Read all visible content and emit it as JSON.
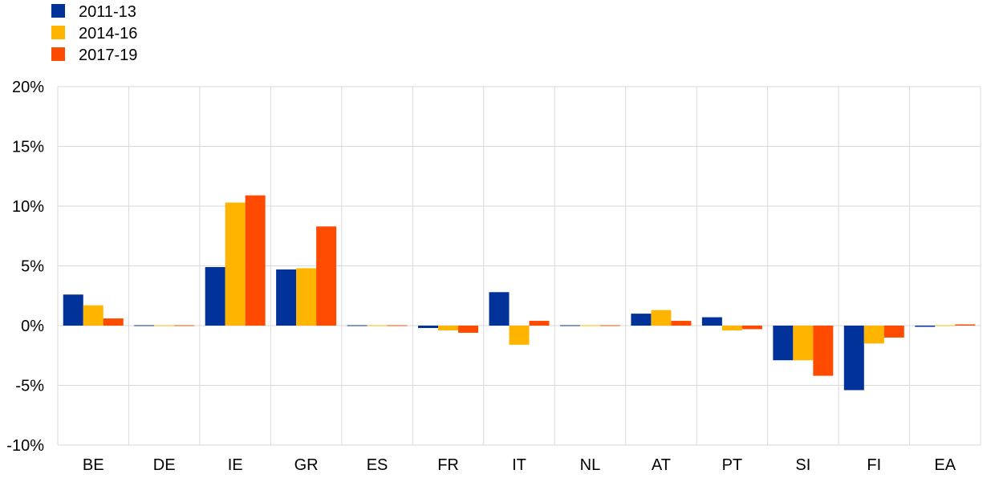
{
  "chart_data": {
    "type": "bar",
    "categories": [
      "BE",
      "DE",
      "IE",
      "GR",
      "ES",
      "FR",
      "IT",
      "NL",
      "AT",
      "PT",
      "SI",
      "FI",
      "EA"
    ],
    "series": [
      {
        "name": "2011-13",
        "color": "#003299",
        "values": [
          2.6,
          0.0,
          4.9,
          4.7,
          0.0,
          -0.2,
          2.8,
          0.0,
          1.0,
          0.7,
          -2.9,
          -5.4,
          -0.1
        ]
      },
      {
        "name": "2014-16",
        "color": "#FFB400",
        "values": [
          1.7,
          0.0,
          10.3,
          4.8,
          0.0,
          -0.4,
          -1.6,
          0.0,
          1.3,
          -0.4,
          -2.9,
          -1.5,
          0.0
        ]
      },
      {
        "name": "2017-19",
        "color": "#FF4B00",
        "values": [
          0.6,
          0.0,
          10.9,
          8.3,
          0.0,
          -0.6,
          0.4,
          0.0,
          0.4,
          -0.3,
          -4.2,
          -1.0,
          0.1
        ]
      }
    ],
    "ylim": [
      -10,
      20
    ],
    "yticks": [
      "-10%",
      "-5%",
      "0%",
      "5%",
      "10%",
      "15%",
      "20%"
    ],
    "ytick_values": [
      -10,
      -5,
      0,
      5,
      10,
      15,
      20
    ],
    "grid": true,
    "legend_position": "top-left"
  }
}
